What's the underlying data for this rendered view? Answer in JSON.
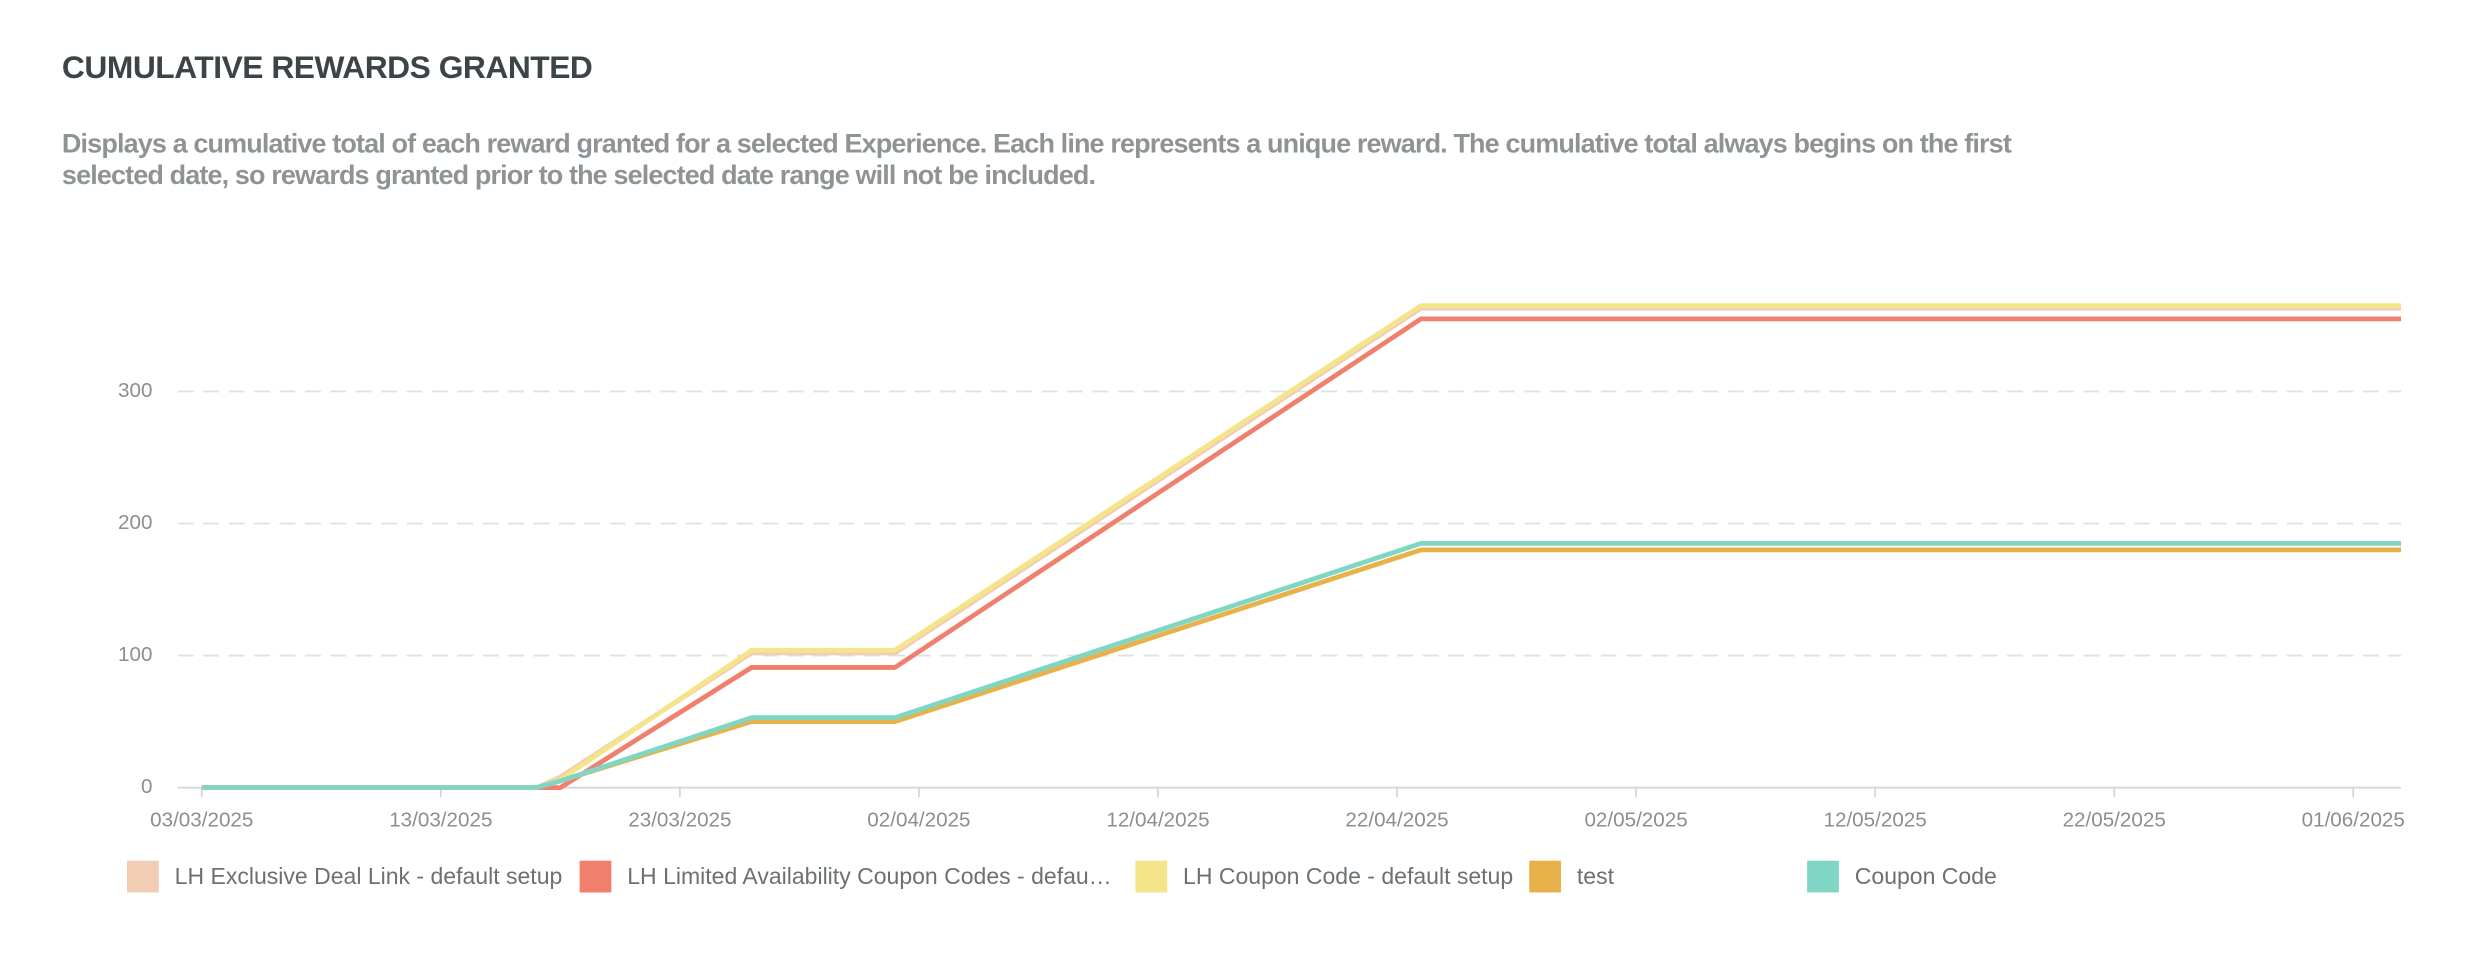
{
  "chart_data": {
    "type": "line",
    "title": "CUMULATIVE REWARDS GRANTED",
    "subtitle": "Displays a cumulative total of each reward granted for a selected Experience. Each line represents a unique reward. The cumulative total always begins on the first selected date, so rewards granted prior to the selected date range will not be included.",
    "x": [
      "03/03/2025",
      "17/03/2025",
      "18/03/2025",
      "26/03/2025",
      "01/04/2025",
      "23/04/2025",
      "03/06/2025"
    ],
    "series": [
      {
        "name": "LH Exclusive Deal Link - default setup",
        "color": "#f0cdb4",
        "values": [
          0,
          0,
          8,
          102,
          102,
          363,
          363
        ]
      },
      {
        "name": "LH Limited Availability Coupon Codes - defau…",
        "color": "#f07f6e",
        "values": [
          0,
          0,
          0,
          91,
          91,
          355,
          355
        ]
      },
      {
        "name": "LH Coupon Code - default setup",
        "color": "#f5e58a",
        "values": [
          0,
          0,
          6,
          104,
          104,
          365,
          365
        ]
      },
      {
        "name": "test",
        "color": "#e8b24a",
        "values": [
          0,
          0,
          5,
          50,
          50,
          180,
          180
        ]
      },
      {
        "name": "Coupon Code",
        "color": "#7fd6c4",
        "values": [
          0,
          0,
          5,
          53,
          53,
          185,
          185
        ]
      }
    ],
    "xlim": [
      "02/03/2025",
      "03/06/2025"
    ],
    "xticks": [
      "03/03/2025",
      "13/03/2025",
      "23/03/2025",
      "02/04/2025",
      "12/04/2025",
      "22/04/2025",
      "02/05/2025",
      "12/05/2025",
      "22/05/2025",
      "01/06/2025"
    ],
    "ylim": [
      0,
      380
    ],
    "yticks": [
      0,
      100,
      200,
      300
    ],
    "grid": true,
    "legend": "bottom"
  }
}
